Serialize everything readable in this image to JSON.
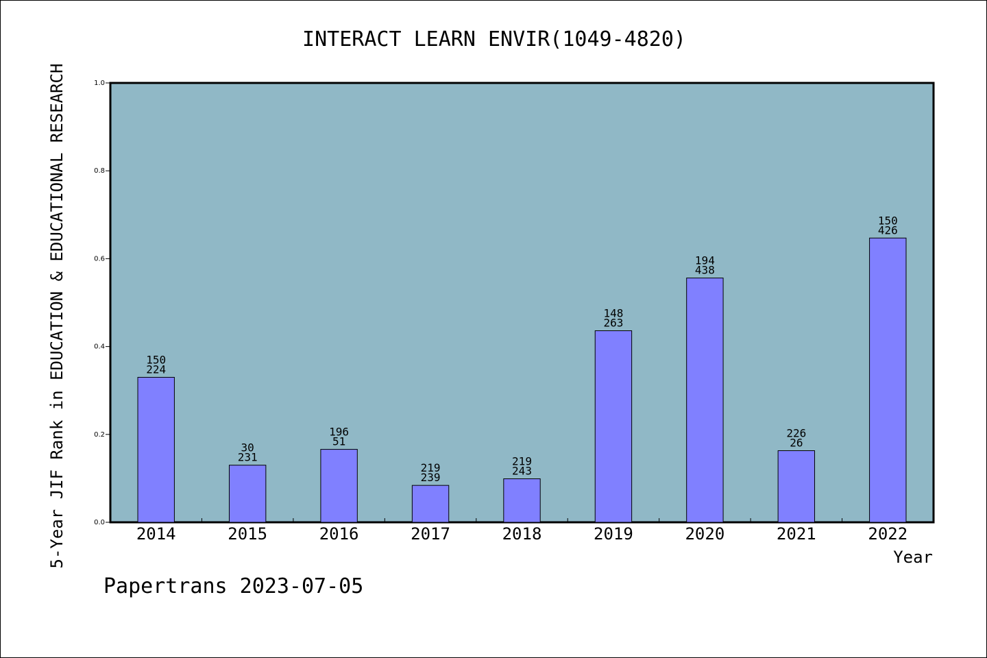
{
  "chart_data": {
    "type": "bar",
    "title": "INTERACT LEARN ENVIR(1049-4820)",
    "xlabel": "Year",
    "ylabel": "5-Year JIF Rank in EDUCATION & EDUCATIONAL RESEARCH",
    "categories": [
      "2014",
      "2015",
      "2016",
      "2017",
      "2018",
      "2019",
      "2020",
      "2021",
      "2022"
    ],
    "values": [
      0.33,
      0.13,
      0.166,
      0.084,
      0.099,
      0.436,
      0.556,
      0.163,
      0.647
    ],
    "bar_labels": [
      {
        "top": "150",
        "bottom": "224"
      },
      {
        "top": "30",
        "bottom": "231"
      },
      {
        "top": "196",
        "bottom": "51"
      },
      {
        "top": "219",
        "bottom": "239"
      },
      {
        "top": "219",
        "bottom": "243"
      },
      {
        "top": "148",
        "bottom": "263"
      },
      {
        "top": "194",
        "bottom": "438"
      },
      {
        "top": "226",
        "bottom": "26"
      },
      {
        "top": "150",
        "bottom": "426"
      }
    ],
    "ylim": [
      0,
      1.0
    ],
    "yticks": [
      "0.0",
      "0.2",
      "0.4",
      "0.6",
      "0.8",
      "1.0"
    ],
    "grid": false,
    "colors": {
      "plot_background": "#90b8c6",
      "bar_fill": "#8080ff",
      "bar_stroke": "#000000"
    }
  },
  "footer": "Papertrans 2023-07-05"
}
